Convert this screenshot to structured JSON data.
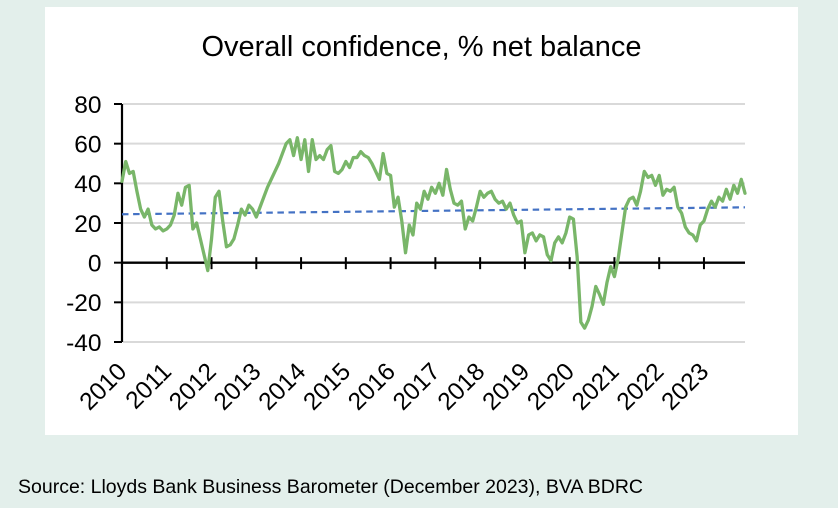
{
  "background_color": "#e3efeb",
  "panel_color": "#ffffff",
  "chart_data": {
    "type": "line",
    "title": "Overall confidence, % net balance",
    "x_start": "2010-01",
    "x_freq": "monthly",
    "x_tick_labels": [
      "2010",
      "2011",
      "2012",
      "2013",
      "2014",
      "2015",
      "2016",
      "2017",
      "2018",
      "2019",
      "2020",
      "2021",
      "2022",
      "2023"
    ],
    "months_per_tick": 12,
    "y_ticks": [
      -40,
      -20,
      0,
      20,
      40,
      60,
      80
    ],
    "ylim": [
      -40,
      80
    ],
    "grid": "horizontal",
    "legend": "none",
    "gridline_color": "#d9d9d9",
    "axis_color": "#000000",
    "series": [
      {
        "name": "Overall confidence, % net balance",
        "color": "#79b669",
        "values": [
          41,
          51,
          45,
          46,
          36,
          27,
          23,
          27,
          19,
          17,
          18,
          16,
          17,
          19,
          24,
          35,
          29,
          38,
          39,
          17,
          20,
          12,
          4,
          -4,
          12,
          33,
          36,
          21,
          8,
          9,
          12,
          19,
          27,
          24,
          29,
          27,
          23,
          28,
          33,
          38,
          42,
          46,
          50,
          55,
          60,
          62,
          54,
          63,
          52,
          62,
          46,
          62,
          52,
          54,
          52,
          57,
          59,
          46,
          45,
          47,
          51,
          48,
          53,
          53,
          56,
          54,
          53,
          50,
          46,
          42,
          55,
          45,
          44,
          28,
          33,
          21,
          5,
          19,
          14,
          30,
          27,
          36,
          32,
          38,
          35,
          40,
          34,
          47,
          37,
          30,
          29,
          31,
          17,
          23,
          21,
          28,
          36,
          33,
          35,
          36,
          32,
          30,
          31,
          27,
          30,
          24,
          20,
          21,
          5,
          14,
          15,
          11,
          14,
          13,
          4,
          1,
          10,
          13,
          10,
          15,
          23,
          22,
          3,
          -30,
          -33,
          -29,
          -22,
          -12,
          -16,
          -21,
          -10,
          -2,
          -7,
          2,
          15,
          28,
          32,
          33,
          29,
          36,
          46,
          43,
          44,
          39,
          44,
          34,
          37,
          36,
          38,
          28,
          25,
          18,
          15,
          14,
          11,
          19,
          21,
          27,
          31,
          28,
          33,
          31,
          37,
          32,
          39,
          35,
          42,
          35
        ]
      }
    ],
    "trendline": {
      "name": "Linear trend",
      "color": "#4472c4",
      "style": "dashed",
      "start_value": 24.4,
      "end_value": 27.9
    }
  },
  "source_note": "Source: Lloyds Bank Business Barometer (December 2023), BVA BDRC"
}
